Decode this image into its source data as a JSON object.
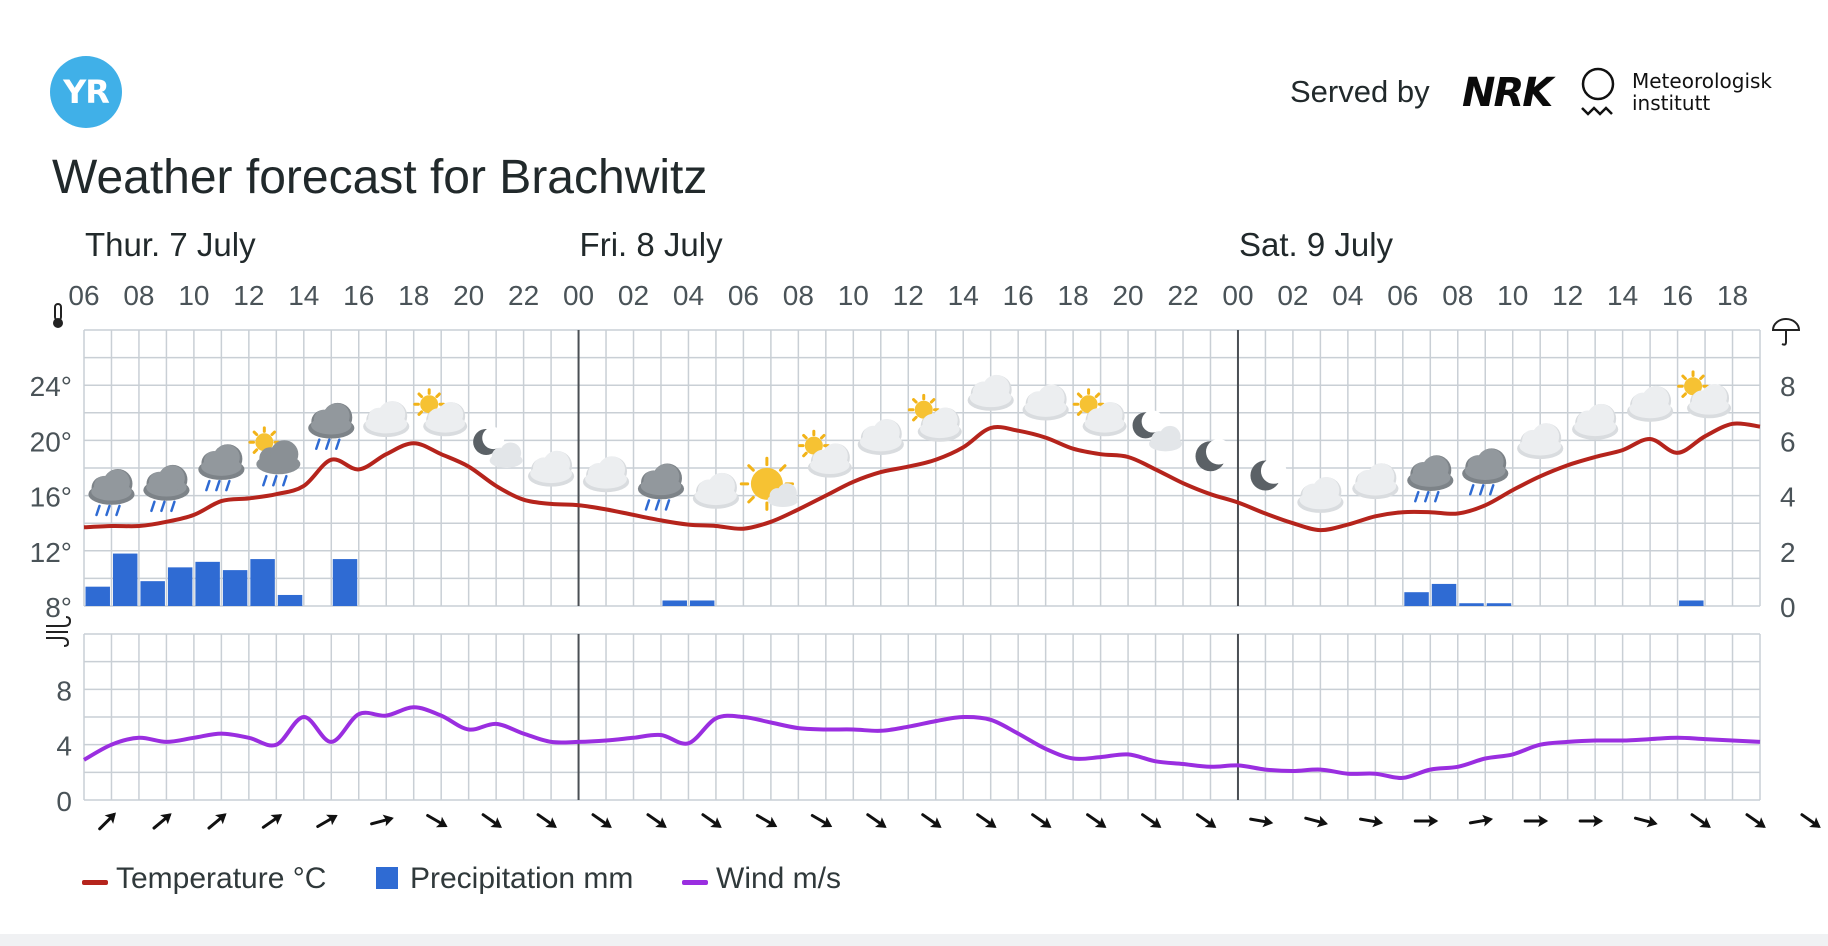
{
  "header": {
    "logo_text": "YR",
    "served_by": "Served by",
    "nrk_logo": "NRK",
    "met_line1": "Meteorologisk",
    "met_line2": "institutt"
  },
  "title": "Weather forecast for Brachwitz",
  "legend": [
    {
      "label": "Temperature °C",
      "color": "#b5241c",
      "shape": "line"
    },
    {
      "label": "Precipitation mm",
      "color": "#2f6bd3",
      "shape": "square"
    },
    {
      "label": "Wind m/s",
      "color": "#9a2ee0",
      "shape": "line"
    }
  ],
  "chart_data": {
    "type": "line",
    "days": [
      {
        "label": "Thur. 7 July",
        "start_hour": 6
      },
      {
        "label": "Fri. 8 July",
        "start_hour": 24
      },
      {
        "label": "Sat. 9 July",
        "start_hour": 48
      }
    ],
    "x_start_hour": 6,
    "x_end_hour": 67,
    "x_tick_labels": [
      "06",
      "08",
      "10",
      "12",
      "14",
      "16",
      "18",
      "20",
      "22",
      "00",
      "02",
      "04",
      "06",
      "08",
      "10",
      "12",
      "14",
      "16",
      "18",
      "20",
      "22",
      "00",
      "02",
      "04",
      "06",
      "08",
      "10",
      "12",
      "14",
      "16",
      "18"
    ],
    "temperature": {
      "name": "Temperature °C",
      "color": "#b5241c",
      "ylim": [
        8,
        28
      ],
      "yticks": [
        "8°",
        "12°",
        "16°",
        "20°",
        "24°"
      ],
      "hours": [
        6,
        7,
        8,
        9,
        10,
        11,
        12,
        13,
        14,
        15,
        16,
        17,
        18,
        19,
        20,
        21,
        22,
        23,
        24,
        25,
        26,
        27,
        28,
        29,
        30,
        31,
        32,
        33,
        34,
        35,
        36,
        37,
        38,
        39,
        40,
        41,
        42,
        43,
        44,
        45,
        46,
        47,
        48,
        49,
        50,
        51,
        52,
        53,
        54,
        55,
        56,
        57,
        58,
        59,
        60,
        61,
        62,
        63,
        64,
        65,
        66,
        67
      ],
      "values": [
        13.7,
        13.8,
        13.8,
        14.1,
        14.6,
        15.6,
        15.8,
        16.1,
        16.7,
        18.6,
        17.9,
        19.0,
        19.8,
        19.0,
        18.1,
        16.7,
        15.7,
        15.4,
        15.3,
        15.0,
        14.6,
        14.2,
        13.9,
        13.8,
        13.6,
        14.1,
        15.0,
        16.0,
        17.0,
        17.7,
        18.1,
        18.6,
        19.5,
        20.9,
        20.7,
        20.2,
        19.4,
        19.0,
        18.8,
        17.9,
        16.9,
        16.1,
        15.5,
        14.7,
        14.0,
        13.5,
        13.9,
        14.5,
        14.8,
        14.8,
        14.7,
        15.3,
        16.4,
        17.4,
        18.2,
        18.8,
        19.3,
        20.1,
        19.1,
        20.3,
        21.2,
        21.0
      ]
    },
    "precipitation": {
      "name": "Precipitation mm",
      "color": "#2f6bd3",
      "ylim": [
        0,
        10
      ],
      "yticks": [
        "0",
        "2",
        "4",
        "6",
        "8"
      ],
      "bars": [
        {
          "hour": 6,
          "value": 0.7
        },
        {
          "hour": 7,
          "value": 1.9
        },
        {
          "hour": 8,
          "value": 0.9
        },
        {
          "hour": 9,
          "value": 1.4
        },
        {
          "hour": 10,
          "value": 1.6
        },
        {
          "hour": 11,
          "value": 1.3
        },
        {
          "hour": 12,
          "value": 1.7
        },
        {
          "hour": 13,
          "value": 0.4
        },
        {
          "hour": 15,
          "value": 1.7
        },
        {
          "hour": 27,
          "value": 0.2
        },
        {
          "hour": 28,
          "value": 0.2
        },
        {
          "hour": 54,
          "value": 0.5
        },
        {
          "hour": 55,
          "value": 0.8
        },
        {
          "hour": 56,
          "value": 0.1
        },
        {
          "hour": 57,
          "value": 0.1
        },
        {
          "hour": 64,
          "value": 0.2
        }
      ]
    },
    "wind": {
      "name": "Wind m/s",
      "color": "#9a2ee0",
      "ylim": [
        0,
        12
      ],
      "yticks": [
        "0",
        "4",
        "8"
      ],
      "hours": [
        6,
        7,
        8,
        9,
        10,
        11,
        12,
        13,
        14,
        15,
        16,
        17,
        18,
        19,
        20,
        21,
        22,
        23,
        24,
        25,
        26,
        27,
        28,
        29,
        30,
        31,
        32,
        33,
        34,
        35,
        36,
        37,
        38,
        39,
        40,
        41,
        42,
        43,
        44,
        45,
        46,
        47,
        48,
        49,
        50,
        51,
        52,
        53,
        54,
        55,
        56,
        57,
        58,
        59,
        60,
        61,
        62,
        63,
        64,
        65,
        66,
        67
      ],
      "values": [
        2.9,
        4.0,
        4.5,
        4.2,
        4.5,
        4.8,
        4.5,
        4.0,
        6.0,
        4.2,
        6.2,
        6.1,
        6.7,
        6.1,
        5.1,
        5.5,
        4.8,
        4.2,
        4.2,
        4.3,
        4.5,
        4.7,
        4.1,
        5.9,
        6.0,
        5.6,
        5.2,
        5.1,
        5.1,
        5.0,
        5.3,
        5.7,
        6.0,
        5.8,
        4.8,
        3.7,
        3.0,
        3.1,
        3.3,
        2.8,
        2.6,
        2.4,
        2.5,
        2.2,
        2.1,
        2.2,
        1.9,
        1.9,
        1.6,
        2.2,
        2.4,
        3.0,
        3.3,
        4.0,
        4.2,
        4.3,
        4.3,
        4.4,
        4.5,
        4.4,
        4.3,
        4.2
      ]
    },
    "weather_symbols": [
      {
        "hour": 7,
        "icon": "rain-cloud-icon"
      },
      {
        "hour": 9,
        "icon": "rain-cloud-icon"
      },
      {
        "hour": 11,
        "icon": "rain-cloud-icon"
      },
      {
        "hour": 13,
        "icon": "sun-rain-cloud-icon"
      },
      {
        "hour": 15,
        "icon": "rain-cloud-icon"
      },
      {
        "hour": 17,
        "icon": "cloud-icon"
      },
      {
        "hour": 19,
        "icon": "partly-cloudy-icon"
      },
      {
        "hour": 21,
        "icon": "moon-cloud-icon"
      },
      {
        "hour": 23,
        "icon": "cloud-icon"
      },
      {
        "hour": 25,
        "icon": "cloud-icon"
      },
      {
        "hour": 27,
        "icon": "rain-cloud-icon"
      },
      {
        "hour": 29,
        "icon": "cloud-icon"
      },
      {
        "hour": 31,
        "icon": "sun-cloud-icon"
      },
      {
        "hour": 33,
        "icon": "partly-cloudy-icon"
      },
      {
        "hour": 35,
        "icon": "cloud-icon"
      },
      {
        "hour": 37,
        "icon": "partly-cloudy-icon"
      },
      {
        "hour": 39,
        "icon": "cloud-icon"
      },
      {
        "hour": 41,
        "icon": "cloud-icon"
      },
      {
        "hour": 43,
        "icon": "partly-cloudy-icon"
      },
      {
        "hour": 45,
        "icon": "moon-cloud-icon"
      },
      {
        "hour": 47,
        "icon": "moon-icon"
      },
      {
        "hour": 49,
        "icon": "moon-icon"
      },
      {
        "hour": 51,
        "icon": "cloud-icon"
      },
      {
        "hour": 53,
        "icon": "cloud-icon"
      },
      {
        "hour": 55,
        "icon": "rain-cloud-icon"
      },
      {
        "hour": 57,
        "icon": "rain-cloud-icon"
      },
      {
        "hour": 59,
        "icon": "cloud-icon"
      },
      {
        "hour": 61,
        "icon": "cloud-icon"
      },
      {
        "hour": 63,
        "icon": "cloud-icon"
      },
      {
        "hour": 65,
        "icon": "partly-cloudy-icon"
      }
    ],
    "wind_directions_deg": [
      45,
      50,
      50,
      55,
      60,
      75,
      120,
      125,
      125,
      125,
      125,
      125,
      120,
      120,
      125,
      125,
      125,
      125,
      125,
      125,
      125,
      100,
      105,
      100,
      90,
      80,
      90,
      90,
      105,
      125,
      125,
      125
    ],
    "grid": true
  }
}
